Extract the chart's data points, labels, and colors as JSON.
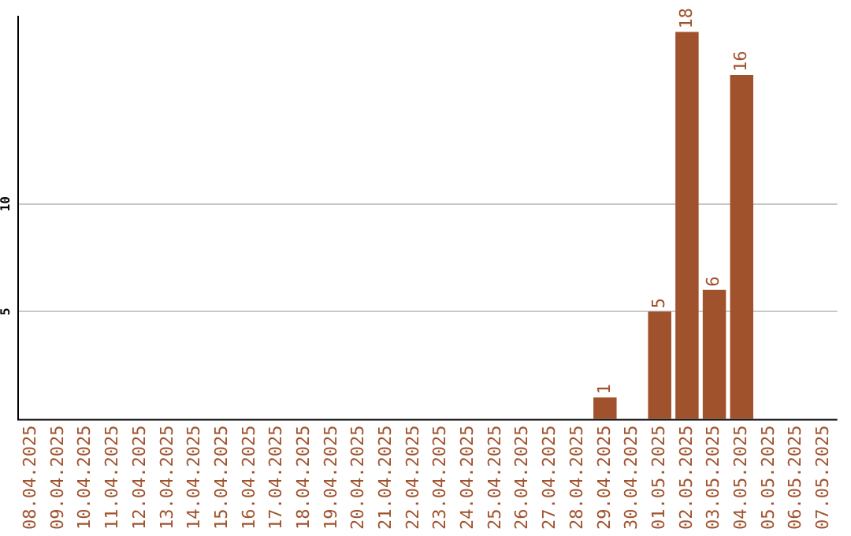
{
  "chart_data": {
    "type": "bar",
    "categories": [
      "08.04.2025",
      "09.04.2025",
      "10.04.2025",
      "11.04.2025",
      "12.04.2025",
      "13.04.2025",
      "14.04.2025",
      "15.04.2025",
      "16.04.2025",
      "17.04.2025",
      "18.04.2025",
      "19.04.2025",
      "20.04.2025",
      "21.04.2025",
      "22.04.2025",
      "23.04.2025",
      "24.04.2025",
      "25.04.2025",
      "26.04.2025",
      "27.04.2025",
      "28.04.2025",
      "29.04.2025",
      "30.04.2025",
      "01.05.2025",
      "02.05.2025",
      "03.05.2025",
      "04.05.2025",
      "05.05.2025",
      "06.05.2025",
      "07.05.2025"
    ],
    "values": [
      0,
      0,
      0,
      0,
      0,
      0,
      0,
      0,
      0,
      0,
      0,
      0,
      0,
      0,
      0,
      0,
      0,
      0,
      0,
      0,
      0,
      1,
      0,
      5,
      18,
      6,
      16,
      0,
      0,
      0
    ],
    "value_labels": [
      null,
      null,
      null,
      null,
      null,
      null,
      null,
      null,
      null,
      null,
      null,
      null,
      null,
      null,
      null,
      null,
      null,
      null,
      null,
      null,
      null,
      "1",
      null,
      "5",
      "18",
      "6",
      "16",
      null,
      null,
      null
    ],
    "color": "#a0522d",
    "ylim": [
      0,
      18.75
    ],
    "yticks": [
      5,
      10
    ],
    "grid": "y",
    "legend": false
  }
}
